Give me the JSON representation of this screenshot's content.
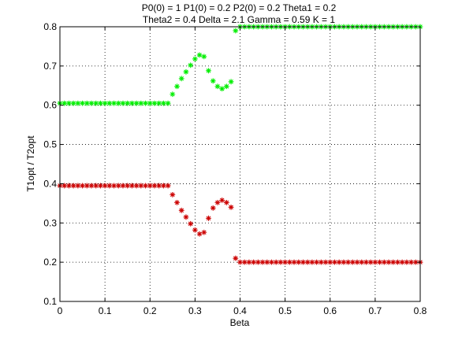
{
  "chart_data": {
    "type": "scatter",
    "title_lines": [
      "P0(0) = 1 P1(0) = 0.2 P2(0) = 0.2 Theta1 = 0.2",
      "Theta2 = 0.4 Delta = 2.1 Gamma = 0.59 K = 1"
    ],
    "xlabel": "Beta",
    "ylabel": "T1opt / T2opt",
    "xlim": [
      0,
      0.8
    ],
    "ylim": [
      0.1,
      0.8
    ],
    "xticks": [
      "0",
      "0.1",
      "0.2",
      "0.3",
      "0.4",
      "0.5",
      "0.6",
      "0.7",
      "0.8"
    ],
    "yticks": [
      "0.1",
      "0.2",
      "0.3",
      "0.4",
      "0.5",
      "0.6",
      "0.7",
      "0.8"
    ],
    "grid": true,
    "marker": "*",
    "x": [
      0,
      0.01,
      0.02,
      0.03,
      0.04,
      0.05,
      0.06,
      0.07,
      0.08,
      0.09,
      0.1,
      0.11,
      0.12,
      0.13,
      0.14,
      0.15,
      0.16,
      0.17,
      0.18,
      0.19,
      0.2,
      0.21,
      0.22,
      0.23,
      0.24,
      0.25,
      0.26,
      0.27,
      0.28,
      0.29,
      0.3,
      0.31,
      0.32,
      0.33,
      0.34,
      0.35,
      0.36,
      0.37,
      0.38,
      0.39,
      0.4,
      0.41,
      0.42,
      0.43,
      0.44,
      0.45,
      0.46,
      0.47,
      0.48,
      0.49,
      0.5,
      0.51,
      0.52,
      0.53,
      0.54,
      0.55,
      0.56,
      0.57,
      0.58,
      0.59,
      0.6,
      0.61,
      0.62,
      0.63,
      0.64,
      0.65,
      0.66,
      0.67,
      0.68,
      0.69,
      0.7,
      0.71,
      0.72,
      0.73,
      0.74,
      0.75,
      0.76,
      0.77,
      0.78,
      0.79,
      0.8
    ],
    "series": [
      {
        "color": "#00ee00",
        "values": [
          0.605,
          0.605,
          0.605,
          0.605,
          0.605,
          0.605,
          0.605,
          0.605,
          0.605,
          0.605,
          0.605,
          0.605,
          0.605,
          0.605,
          0.605,
          0.605,
          0.605,
          0.605,
          0.605,
          0.605,
          0.605,
          0.605,
          0.605,
          0.605,
          0.605,
          0.628,
          0.648,
          0.668,
          0.685,
          0.702,
          0.718,
          0.728,
          0.724,
          0.688,
          0.662,
          0.648,
          0.642,
          0.648,
          0.66,
          0.79,
          0.8,
          0.8,
          0.8,
          0.8,
          0.8,
          0.8,
          0.8,
          0.8,
          0.8,
          0.8,
          0.8,
          0.8,
          0.8,
          0.8,
          0.8,
          0.8,
          0.8,
          0.8,
          0.8,
          0.8,
          0.8,
          0.8,
          0.8,
          0.8,
          0.8,
          0.8,
          0.8,
          0.8,
          0.8,
          0.8,
          0.8,
          0.8,
          0.8,
          0.8,
          0.8,
          0.8,
          0.8,
          0.8,
          0.8,
          0.8,
          0.8
        ]
      },
      {
        "color": "#cc0000",
        "values": [
          0.395,
          0.395,
          0.395,
          0.395,
          0.395,
          0.395,
          0.395,
          0.395,
          0.395,
          0.395,
          0.395,
          0.395,
          0.395,
          0.395,
          0.395,
          0.395,
          0.395,
          0.395,
          0.395,
          0.395,
          0.395,
          0.395,
          0.395,
          0.395,
          0.395,
          0.372,
          0.352,
          0.332,
          0.315,
          0.298,
          0.282,
          0.272,
          0.276,
          0.312,
          0.338,
          0.352,
          0.358,
          0.352,
          0.34,
          0.21,
          0.2,
          0.2,
          0.2,
          0.2,
          0.2,
          0.2,
          0.2,
          0.2,
          0.2,
          0.2,
          0.2,
          0.2,
          0.2,
          0.2,
          0.2,
          0.2,
          0.2,
          0.2,
          0.2,
          0.2,
          0.2,
          0.2,
          0.2,
          0.2,
          0.2,
          0.2,
          0.2,
          0.2,
          0.2,
          0.2,
          0.2,
          0.2,
          0.2,
          0.2,
          0.2,
          0.2,
          0.2,
          0.2,
          0.2,
          0.2,
          0.2
        ]
      }
    ]
  }
}
